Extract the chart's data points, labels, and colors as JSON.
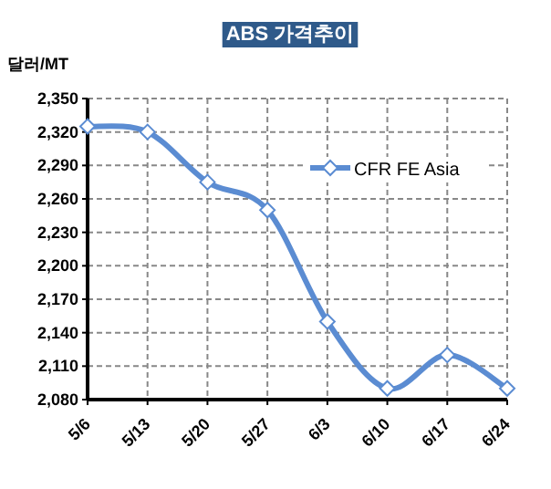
{
  "chart_data": {
    "type": "line",
    "title": "ABS 가격추이",
    "ylabel": "달러/MT",
    "categories": [
      "5/6",
      "5/13",
      "5/20",
      "5/27",
      "6/3",
      "6/10",
      "6/17",
      "6/24"
    ],
    "series": [
      {
        "name": "CFR FE Asia",
        "color": "#5b8cd2",
        "values": [
          2325,
          2320,
          2275,
          2250,
          2150,
          2090,
          2120,
          2090
        ]
      }
    ],
    "ylim": [
      2080,
      2350
    ],
    "yticks": [
      {
        "value": 2080,
        "label": "2,080"
      },
      {
        "value": 2110,
        "label": "2,110"
      },
      {
        "value": 2140,
        "label": "2,140"
      },
      {
        "value": 2170,
        "label": "2,170"
      },
      {
        "value": 2200,
        "label": "2,200"
      },
      {
        "value": 2230,
        "label": "2,230"
      },
      {
        "value": 2260,
        "label": "2,260"
      },
      {
        "value": 2290,
        "label": "2,290"
      },
      {
        "value": 2320,
        "label": "2,320"
      },
      {
        "value": 2350,
        "label": "2,350"
      }
    ],
    "grid": true,
    "legend": "right",
    "marker": "diamond",
    "line_style": "solid"
  }
}
